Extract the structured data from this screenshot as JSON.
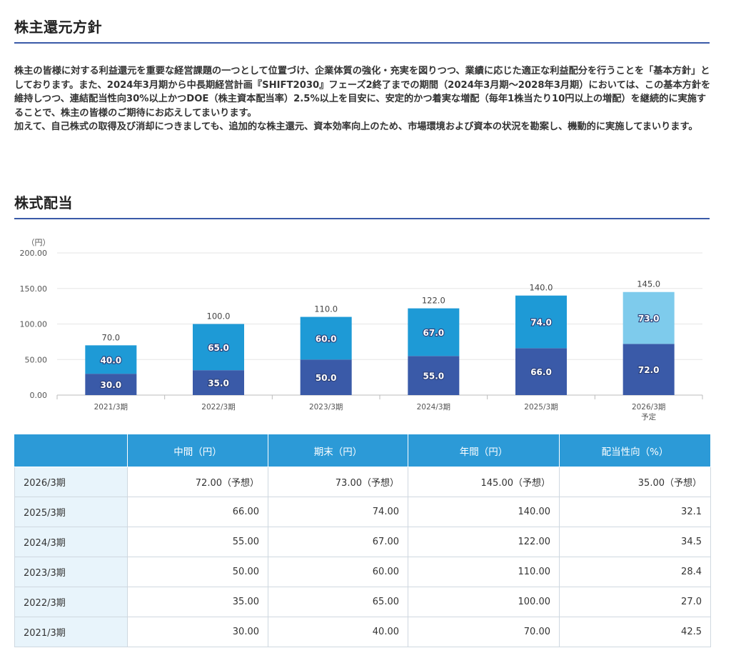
{
  "sections": {
    "policy_title": "株主還元方針",
    "dividend_title": "株式配当"
  },
  "policy": {
    "paragraphs": [
      "株主の皆様に対する利益還元を重要な経営課題の一つとして位置づけ、企業体質の強化・充実を図りつつ、業績に応じた適正な利益配分を行うことを「基本方針」としております。また、2024年3月期から中長期経営計画『SHIFT2030』フェーズ2終了までの期間（2024年3月期〜2028年3月期）においては、この基本方針を維持しつつ、連結配当性向30%以上かつDOE（株主資本配当率）2.5%以上を目安に、安定的かつ着実な増配（毎年1株当たり10円以上の増配）を継続的に実施することで、株主の皆様のご期待にお応えしてまいります。",
      "加えて、自己株式の取得及び消却につきましても、追加的な株主還元、資本効率向上のため、市場環境および資本の状況を勘案し、機動的に実施してまいります。"
    ]
  },
  "chart_data": {
    "type": "bar",
    "stacked": true,
    "ylabel": "（円）",
    "ylim": [
      0,
      200
    ],
    "yticks": [
      "0.00",
      "50.00",
      "100.00",
      "150.00",
      "200.00"
    ],
    "grid": true,
    "categories": [
      "2021/3期",
      "2022/3期",
      "2023/3期",
      "2024/3期",
      "2025/3期",
      "2026/3期"
    ],
    "category_sublabels": [
      "",
      "",
      "",
      "",
      "",
      "予定"
    ],
    "series": [
      {
        "values": [
          30,
          35,
          50,
          55,
          66,
          72
        ],
        "labels": [
          "30.0",
          "35.0",
          "50.0",
          "55.0",
          "66.0",
          "72.0"
        ],
        "color": "#3a5aa8"
      },
      {
        "values": [
          40,
          65,
          60,
          67,
          74,
          73
        ],
        "labels": [
          "40.0",
          "65.0",
          "60.0",
          "67.0",
          "74.0",
          "73.0"
        ],
        "color": "#1e9ad6",
        "last_color": "#7ecbec"
      }
    ],
    "totals": [
      70,
      100,
      110,
      122,
      140,
      145
    ],
    "total_labels": [
      "70.0",
      "100.0",
      "110.0",
      "122.0",
      "140.0",
      "145.0"
    ]
  },
  "table": {
    "headers": [
      "",
      "中間（円）",
      "期末（円）",
      "年間（円）",
      "配当性向（%）"
    ],
    "rows": [
      [
        "2026/3期",
        "72.00（予想）",
        "73.00（予想）",
        "145.00（予想）",
        "35.00（予想）"
      ],
      [
        "2025/3期",
        "66.00",
        "74.00",
        "140.00",
        "32.1"
      ],
      [
        "2024/3期",
        "55.00",
        "67.00",
        "122.00",
        "34.5"
      ],
      [
        "2023/3期",
        "50.00",
        "60.00",
        "110.00",
        "28.4"
      ],
      [
        "2022/3期",
        "35.00",
        "65.00",
        "100.00",
        "27.0"
      ],
      [
        "2021/3期",
        "30.00",
        "40.00",
        "70.00",
        "42.5"
      ]
    ]
  }
}
